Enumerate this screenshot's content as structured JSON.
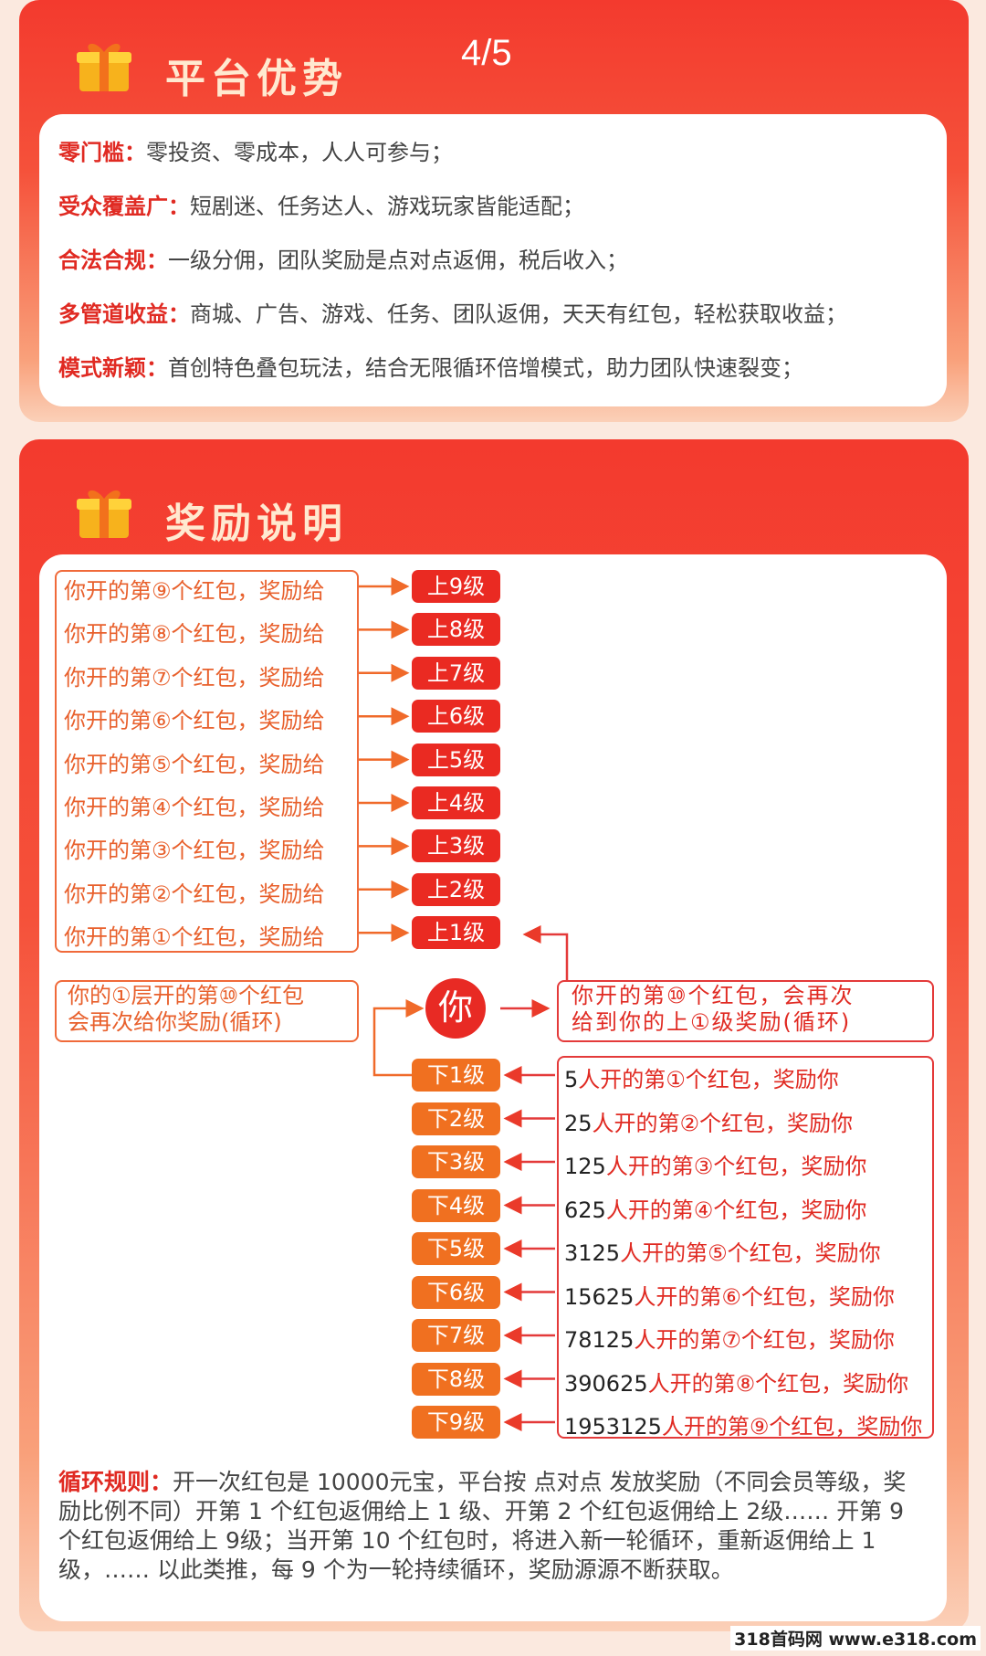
{
  "page_indicator": "4/5",
  "advantages": {
    "title": "平台优势",
    "items": [
      {
        "label": "零门槛：",
        "text": "零投资、零成本，人人可参与；"
      },
      {
        "label": "受众覆盖广：",
        "text": "短剧迷、任务达人、游戏玩家皆能适配；"
      },
      {
        "label": "合法合规：",
        "text": "一级分佣，团队奖励是点对点返佣，税后收入；"
      },
      {
        "label": "多管道收益：",
        "text": "商城、广告、游戏、任务、团队返佣，天天有红包，轻松获取收益；"
      },
      {
        "label": "模式新颖：",
        "text": "首创特色叠包玩法，结合无限循环倍增模式，助力团队快速裂变；"
      }
    ]
  },
  "rewards": {
    "title": "奖励说明",
    "up_rows": [
      {
        "text": "你开的第⑨个红包，奖励给",
        "badge": "上9级"
      },
      {
        "text": "你开的第⑧个红包，奖励给",
        "badge": "上8级"
      },
      {
        "text": "你开的第⑦个红包，奖励给",
        "badge": "上7级"
      },
      {
        "text": "你开的第⑥个红包，奖励给",
        "badge": "上6级"
      },
      {
        "text": "你开的第⑤个红包，奖励给",
        "badge": "上5级"
      },
      {
        "text": "你开的第④个红包，奖励给",
        "badge": "上4级"
      },
      {
        "text": "你开的第③个红包，奖励给",
        "badge": "上3级"
      },
      {
        "text": "你开的第②个红包，奖励给",
        "badge": "上2级"
      },
      {
        "text": "你开的第①个红包，奖励给",
        "badge": "上1级"
      }
    ],
    "you": "你",
    "left_note": [
      "你的①层开的第⑩个红包",
      "会再次给你奖励(循环)"
    ],
    "right_note": [
      "你开的第⑩个红包，会再次",
      "给到你的上①级奖励(循环)"
    ],
    "down_rows": [
      {
        "badge": "下1级",
        "count": "5",
        "text": "人开的第①个红包，奖励你"
      },
      {
        "badge": "下2级",
        "count": "25",
        "text": "人开的第②个红包，奖励你"
      },
      {
        "badge": "下3级",
        "count": "125",
        "text": "人开的第③个红包，奖励你"
      },
      {
        "badge": "下4级",
        "count": "625",
        "text": "人开的第④个红包，奖励你"
      },
      {
        "badge": "下5级",
        "count": "3125",
        "text": "人开的第⑤个红包，奖励你"
      },
      {
        "badge": "下6级",
        "count": "15625",
        "text": "人开的第⑥个红包，奖励你"
      },
      {
        "badge": "下7级",
        "count": "78125",
        "text": "人开的第⑦个红包，奖励你"
      },
      {
        "badge": "下8级",
        "count": "390625",
        "text": "人开的第⑧个红包，奖励你"
      },
      {
        "badge": "下9级",
        "count": "1953125",
        "text": "人开的第⑨个红包，奖励你"
      }
    ],
    "rules_label": "循环规则：",
    "rules_text": "开一次红包是 10000元宝，平台按 点对点 发放奖励（不同会员等级，奖励比例不同）开第 1 个红包返佣给上 1 级、开第 2 个红包返佣给上 2级…… 开第 9 个红包返佣给上 9级；当开第 10 个红包时，将进入新一轮循环，重新返佣给上 1 级，…… 以此类推，每 9 个为一轮持续循环，奖励源源不断获取。"
  },
  "watermark": "318首码网 www.e318.com",
  "colors": {
    "red": "#ea2a22",
    "orange": "#f07020",
    "title": "#ffe9d0"
  }
}
